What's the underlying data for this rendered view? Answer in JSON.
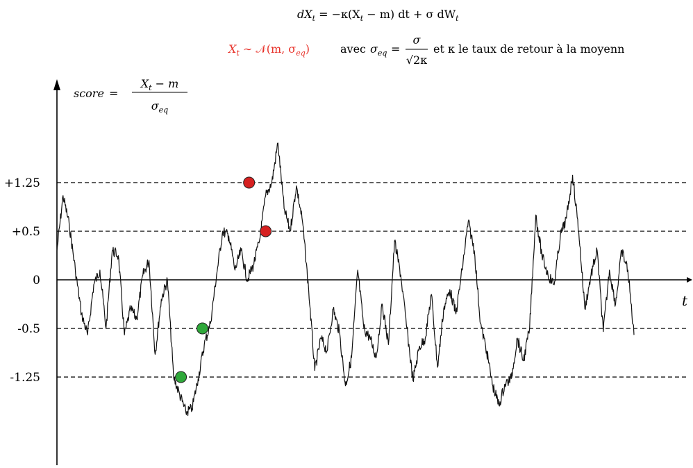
{
  "formulas": {
    "sde": {
      "lhs": "dX",
      "lhs_sub": "t",
      "mid": " = −κ(X",
      "mid_sub": "t",
      "rhs": " − m) dt + σ dW",
      "rhs_sub": "t"
    },
    "distribution": {
      "red_part": "X",
      "red_sub": "t",
      "red_rest": " ∼ 𝒩(m, σ",
      "red_sub2": "eq",
      "red_close": ")",
      "avec": "avec",
      "sigma_eq": "σ",
      "sigma_eq_sub": "eq",
      "equals": "=",
      "frac_num": "σ",
      "frac_den": "√2κ",
      "tail": "et κ le taux de retour à la moyenn"
    },
    "score": {
      "label": "score",
      "equals": "=",
      "num_x": "X",
      "num_sub": "t",
      "num_rest": " − m",
      "den": "σ",
      "den_sub": "eq"
    }
  },
  "colors": {
    "red_text": "#e8332b",
    "red_point": "#d62020",
    "green_point": "#2fa83a",
    "line": "#111111"
  },
  "chart_data": {
    "type": "line",
    "xlabel": "t",
    "ylabel": "score = (X_t − m)/σ_eq",
    "ylim": [
      -3.75,
      3.65
    ],
    "xlim": [
      0,
      100
    ],
    "yticks": [
      {
        "value": 1.25,
        "label": "+1.25"
      },
      {
        "value": 0.5,
        "label": "+0.5"
      },
      {
        "value": 0,
        "label": "0"
      },
      {
        "value": -0.5,
        "label": "-0.5"
      },
      {
        "value": -1.25,
        "label": "-1.25"
      }
    ],
    "dashed_thresholds": [
      1.25,
      0.5,
      -0.5,
      -1.25
    ],
    "series": [
      {
        "x": [
          0,
          1,
          2,
          3,
          4,
          5,
          6,
          7,
          8,
          9,
          10,
          11,
          12,
          13,
          14,
          15,
          16,
          17,
          18,
          19,
          20,
          21,
          22,
          23,
          24,
          25,
          26,
          27,
          28,
          29,
          30,
          31,
          32,
          33,
          34,
          35,
          36,
          37,
          38,
          39,
          40,
          41,
          42,
          43,
          44,
          45,
          46,
          47,
          48,
          49,
          50,
          51,
          52,
          53,
          54,
          55,
          56,
          57,
          58,
          59,
          60,
          61,
          62,
          63,
          64,
          65,
          66,
          67,
          68,
          69,
          70,
          71,
          72,
          73,
          74,
          75,
          76,
          77,
          78,
          79,
          80,
          81,
          82,
          83,
          84,
          85,
          86,
          87,
          88,
          89,
          90,
          91,
          92,
          93,
          94
        ],
        "y": [
          0.3,
          1.05,
          0.6,
          0.1,
          -0.35,
          -0.6,
          -0.05,
          0.1,
          -0.5,
          0.3,
          0.25,
          -0.6,
          -0.3,
          -0.4,
          0.05,
          0.2,
          -0.9,
          -0.2,
          0.0,
          -1.25,
          -1.75,
          -2.25,
          -2.15,
          -1.3,
          -0.75,
          -0.45,
          0.05,
          0.5,
          0.45,
          0.1,
          0.3,
          0.0,
          0.15,
          0.4,
          1.05,
          1.25,
          2.05,
          0.85,
          0.5,
          1.2,
          0.65,
          -0.1,
          -1.15,
          -0.65,
          -0.85,
          -0.3,
          -0.55,
          -1.5,
          -0.95,
          0.1,
          -0.5,
          -0.65,
          -0.95,
          -0.25,
          -0.75,
          0.4,
          0.05,
          -0.5,
          -1.35,
          -0.8,
          -0.65,
          -0.15,
          -1.1,
          -0.3,
          -0.1,
          -0.35,
          0.1,
          0.65,
          0.3,
          -0.45,
          -0.85,
          -1.5,
          -2.05,
          -1.45,
          -1.3,
          -0.65,
          -1.0,
          -0.5,
          0.75,
          0.25,
          0.05,
          -0.05,
          0.45,
          0.7,
          1.4,
          0.5,
          -0.3,
          0.05,
          0.3,
          -0.55,
          0.1,
          -0.25,
          0.3,
          0.1,
          -0.6
        ]
      }
    ],
    "markers": [
      {
        "x": 31.3,
        "y": 1.25,
        "color": "red"
      },
      {
        "x": 34.0,
        "y": 0.5,
        "color": "red"
      },
      {
        "x": 20.2,
        "y": -1.25,
        "color": "green"
      },
      {
        "x": 23.7,
        "y": -0.5,
        "color": "green"
      }
    ]
  }
}
